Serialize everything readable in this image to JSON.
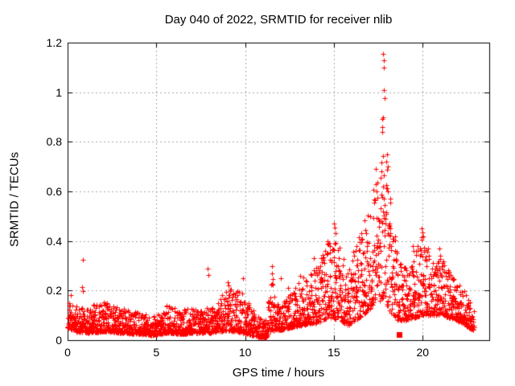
{
  "chart_data": {
    "type": "scatter",
    "title": "Day 040 of 2022, SRMTID for receiver nlib",
    "xlabel": "GPS time / hours",
    "ylabel": "SRMTID / TECUs",
    "xlim": [
      0,
      23.75
    ],
    "ylim": [
      0,
      1.2
    ],
    "xticks": {
      "values": [
        0,
        5,
        10,
        15,
        20
      ],
      "labels": [
        "0",
        "5",
        "10",
        "15",
        "20"
      ]
    },
    "yticks": {
      "values": [
        0,
        0.2,
        0.4,
        0.6,
        0.8,
        1,
        1.2
      ],
      "labels": [
        "0",
        "0.2",
        "0.4",
        "0.6",
        "0.8",
        "1",
        "1.2"
      ]
    },
    "grid": {
      "show": true,
      "style": "dotted",
      "color": "#a8a8a8"
    },
    "style": {
      "background": "#ffffff",
      "axis_color": "#000000",
      "text_color": "#000000"
    },
    "series": [
      {
        "name": "SRMTID",
        "marker": "plus",
        "color": "#ff0000",
        "marker_size": 7
      }
    ],
    "cloud": {
      "seed": 1234567,
      "n_points": 2750,
      "t_max": 22.9,
      "envelope": [
        [
          0.0,
          0.05,
          0.18,
          2.0
        ],
        [
          0.35,
          0.035,
          0.14,
          2.2
        ],
        [
          1.0,
          0.03,
          0.13,
          2.2
        ],
        [
          2.1,
          0.035,
          0.16,
          2.2
        ],
        [
          3.0,
          0.03,
          0.13,
          2.2
        ],
        [
          4.0,
          0.025,
          0.11,
          2.2
        ],
        [
          4.8,
          0.02,
          0.1,
          2.2
        ],
        [
          5.6,
          0.03,
          0.14,
          2.2
        ],
        [
          6.4,
          0.025,
          0.13,
          2.2
        ],
        [
          7.2,
          0.03,
          0.13,
          2.2
        ],
        [
          8.1,
          0.03,
          0.13,
          2.2
        ],
        [
          9.0,
          0.04,
          0.21,
          2.0
        ],
        [
          9.9,
          0.03,
          0.19,
          2.2
        ],
        [
          10.6,
          0.015,
          0.1,
          2.3
        ],
        [
          11.15,
          0.01,
          0.08,
          2.3
        ],
        [
          11.5,
          0.04,
          0.29,
          1.9
        ],
        [
          11.9,
          0.04,
          0.17,
          2.1
        ],
        [
          12.6,
          0.05,
          0.19,
          2.1
        ],
        [
          13.2,
          0.06,
          0.25,
          2.0
        ],
        [
          14.0,
          0.07,
          0.31,
          1.9
        ],
        [
          14.8,
          0.09,
          0.42,
          1.8
        ],
        [
          15.3,
          0.08,
          0.38,
          1.9
        ],
        [
          15.8,
          0.06,
          0.29,
          2.0
        ],
        [
          16.4,
          0.09,
          0.43,
          1.8
        ],
        [
          17.0,
          0.12,
          0.56,
          1.6
        ],
        [
          17.4,
          0.15,
          0.73,
          1.45
        ],
        [
          17.85,
          0.15,
          0.78,
          1.4
        ],
        [
          18.25,
          0.1,
          0.55,
          1.6
        ],
        [
          18.6,
          0.08,
          0.32,
          1.9
        ],
        [
          19.1,
          0.08,
          0.29,
          1.9
        ],
        [
          19.5,
          0.09,
          0.37,
          1.8
        ],
        [
          20.0,
          0.1,
          0.44,
          1.8
        ],
        [
          20.6,
          0.1,
          0.31,
          1.9
        ],
        [
          21.0,
          0.1,
          0.34,
          1.9
        ],
        [
          21.6,
          0.09,
          0.27,
          2.0
        ],
        [
          22.2,
          0.07,
          0.22,
          2.1
        ],
        [
          22.6,
          0.05,
          0.17,
          2.1
        ],
        [
          22.9,
          0.04,
          0.13,
          2.1
        ]
      ]
    },
    "outliers": [
      [
        0.86,
        0.323
      ],
      [
        0.82,
        0.215
      ],
      [
        0.85,
        0.198
      ],
      [
        7.9,
        0.29
      ],
      [
        7.92,
        0.262
      ],
      [
        9.0,
        0.235
      ],
      [
        9.05,
        0.22
      ],
      [
        9.9,
        0.25
      ],
      [
        11.5,
        0.3
      ],
      [
        11.52,
        0.27
      ],
      [
        12.0,
        0.25
      ],
      [
        12.4,
        0.21
      ],
      [
        13.1,
        0.26
      ],
      [
        13.85,
        0.33
      ],
      [
        14.5,
        0.36
      ],
      [
        15.0,
        0.47
      ],
      [
        15.04,
        0.455
      ],
      [
        15.1,
        0.43
      ],
      [
        16.55,
        0.43
      ],
      [
        16.6,
        0.41
      ],
      [
        17.78,
        1.155
      ],
      [
        17.8,
        1.13
      ],
      [
        17.79,
        1.1
      ],
      [
        17.82,
        1.01
      ],
      [
        17.85,
        0.975
      ],
      [
        17.76,
        0.9
      ],
      [
        17.73,
        0.893
      ],
      [
        17.7,
        0.858
      ],
      [
        17.72,
        0.84
      ],
      [
        18.0,
        0.75
      ],
      [
        17.95,
        0.72
      ],
      [
        18.05,
        0.7
      ],
      [
        19.45,
        0.38
      ],
      [
        19.5,
        0.36
      ],
      [
        19.95,
        0.45
      ],
      [
        20.0,
        0.435
      ],
      [
        20.05,
        0.42
      ],
      [
        20.95,
        0.37
      ],
      [
        21.0,
        0.34
      ]
    ],
    "special_points": [
      {
        "x": 18.68,
        "y": 0.02,
        "marker": "filled-square",
        "color": "#ff0000",
        "size": 7
      }
    ]
  }
}
